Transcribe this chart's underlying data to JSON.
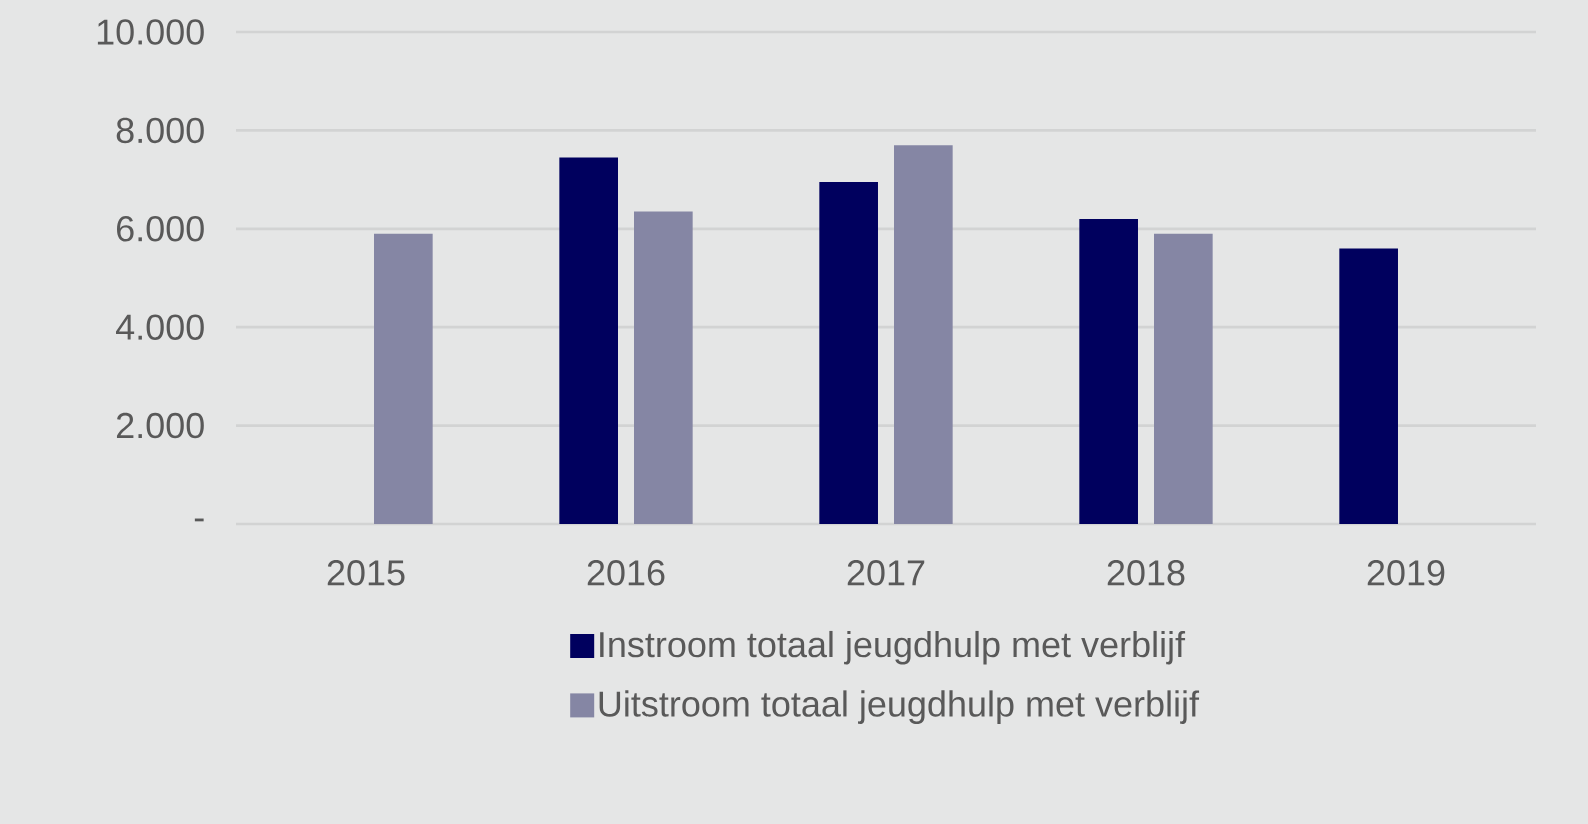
{
  "chart_data": {
    "type": "bar",
    "categories": [
      "2015",
      "2016",
      "2017",
      "2018",
      "2019"
    ],
    "series": [
      {
        "name": "Instroom totaal jeugdhulp met verblijf",
        "color": "#00005e",
        "values": [
          null,
          7450,
          6950,
          6200,
          5600
        ]
      },
      {
        "name": "Uitstroom totaal jeugdhulp met verblijf",
        "color": "#8586a4",
        "values": [
          5900,
          6350,
          7700,
          5900,
          null
        ]
      }
    ],
    "ylim": [
      0,
      10000
    ],
    "yticks": [
      {
        "value": 0,
        "label": "-"
      },
      {
        "value": 2000,
        "label": "2.000"
      },
      {
        "value": 4000,
        "label": "4.000"
      },
      {
        "value": 6000,
        "label": "6.000"
      },
      {
        "value": 8000,
        "label": "8.000"
      },
      {
        "value": 10000,
        "label": "10.000"
      }
    ],
    "grid": "y",
    "legend": "bottom"
  }
}
